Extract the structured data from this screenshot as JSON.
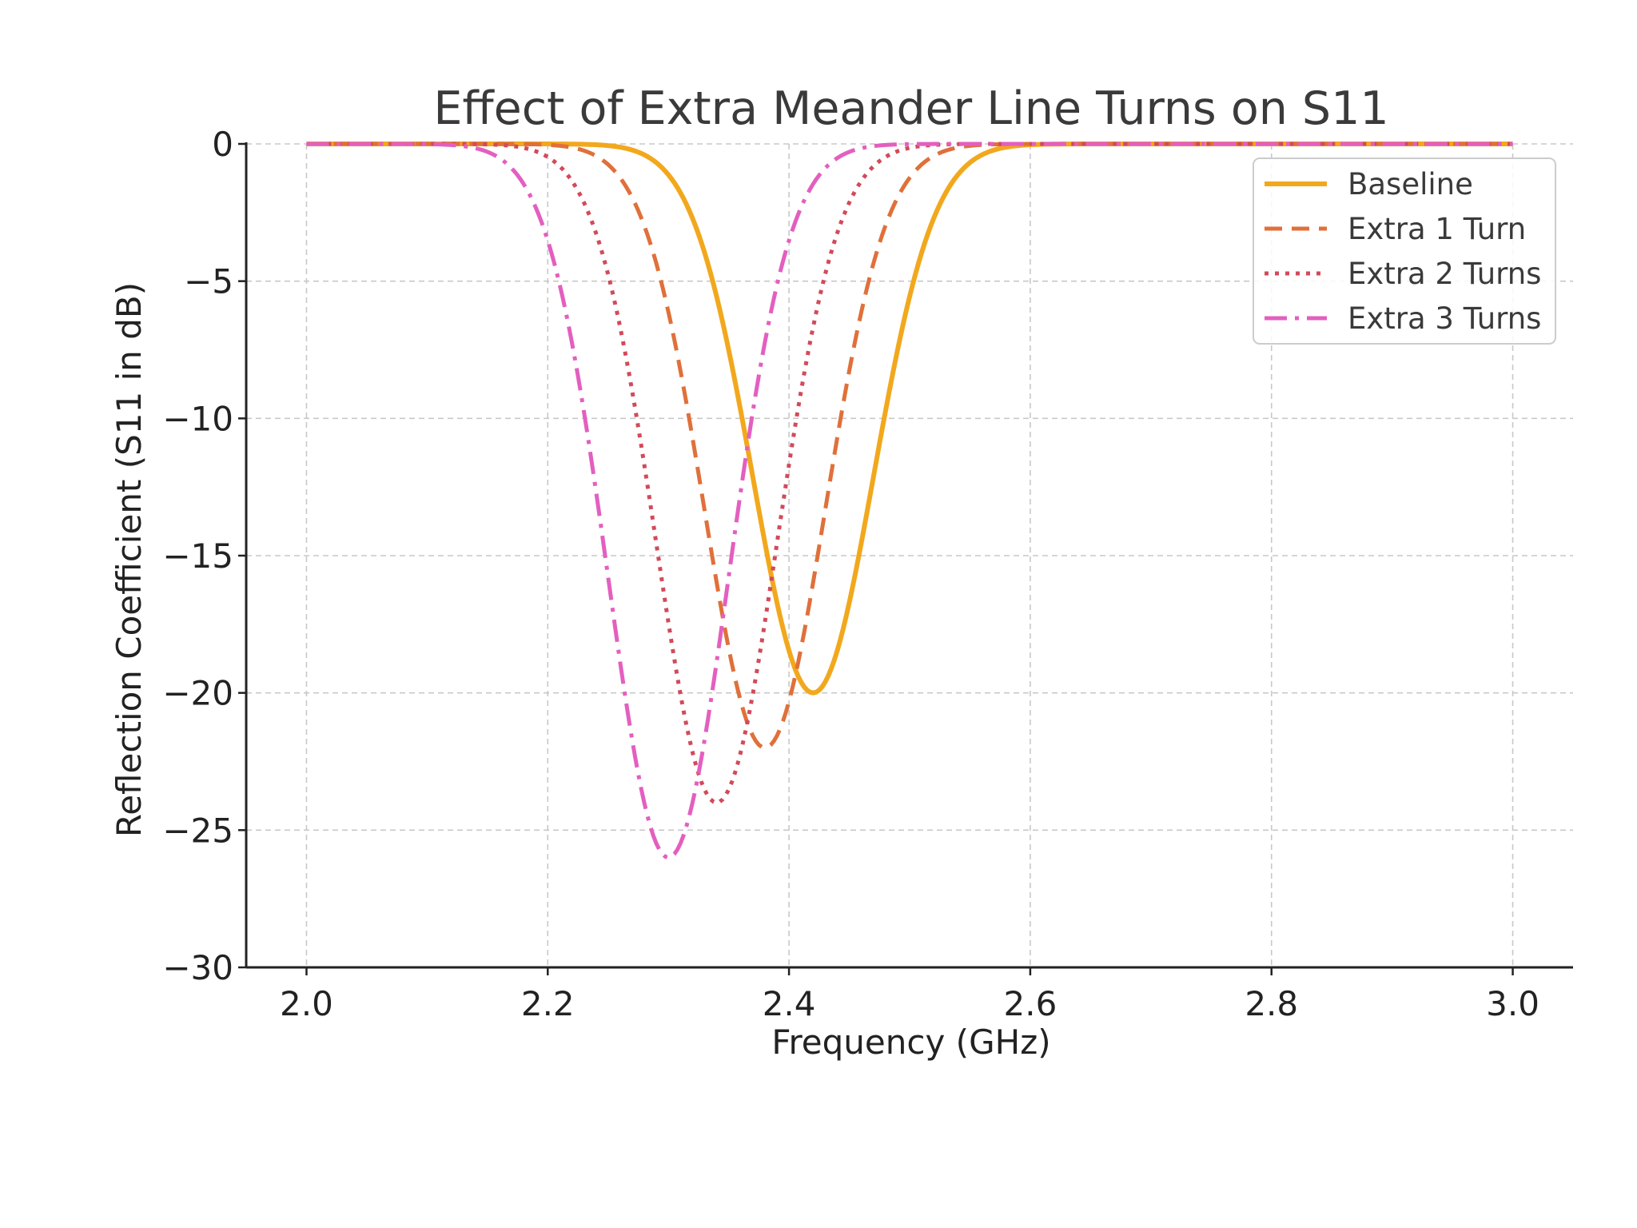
{
  "chart_data": {
    "type": "line",
    "title": "Effect of Extra Meander Line Turns on S11",
    "xlabel": "Frequency (GHz)",
    "ylabel": "Reflection Coefficient (S11 in dB)",
    "xlim": [
      1.95,
      3.05
    ],
    "ylim": [
      -30,
      0
    ],
    "xticks": [
      2.0,
      2.2,
      2.4,
      2.6,
      2.8,
      3.0
    ],
    "xtick_labels": [
      "2.0",
      "2.2",
      "2.4",
      "2.6",
      "2.8",
      "3.0"
    ],
    "yticks": [
      0,
      -5,
      -10,
      -15,
      -20,
      -25,
      -30
    ],
    "ytick_labels": [
      "0",
      "−5",
      "−10",
      "−15",
      "−20",
      "−25",
      "−30"
    ],
    "grid": true,
    "legend_position": "top-right",
    "x_range": [
      2.0,
      3.0
    ],
    "series": [
      {
        "name": "Baseline",
        "style": "solid",
        "color": "#f2a81d",
        "min_freq": 2.42,
        "min_s11": -20,
        "width": 0.05
      },
      {
        "name": "Extra 1 Turn",
        "style": "dashed",
        "color": "#e0703a",
        "min_freq": 2.38,
        "min_s11": -22,
        "width": 0.05
      },
      {
        "name": "Extra 2 Turns",
        "style": "dotted",
        "color": "#d24a5a",
        "min_freq": 2.34,
        "min_s11": -24,
        "width": 0.05
      },
      {
        "name": "Extra 3 Turns",
        "style": "dashdot",
        "color": "#e35fbf",
        "min_freq": 2.3,
        "min_s11": -26,
        "width": 0.05
      }
    ]
  }
}
